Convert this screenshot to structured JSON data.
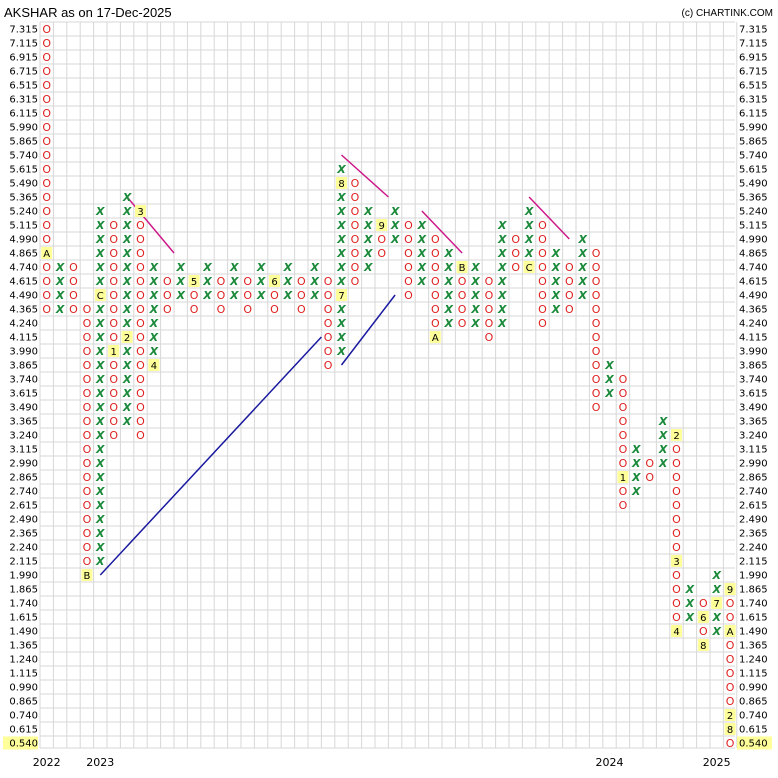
{
  "chart_data": {
    "type": "point-and-figure",
    "title": "AKSHAR as on 17-Dec-2025",
    "credit": "(c) CHARTINK.COM",
    "y_ticks": [
      "7.315",
      "7.115",
      "6.915",
      "6.715",
      "6.515",
      "6.315",
      "6.115",
      "5.990",
      "5.865",
      "5.740",
      "5.615",
      "5.490",
      "5.365",
      "5.240",
      "5.115",
      "4.990",
      "4.865",
      "4.740",
      "4.615",
      "4.490",
      "4.365",
      "4.240",
      "4.115",
      "3.990",
      "3.865",
      "3.740",
      "3.615",
      "3.490",
      "3.365",
      "3.240",
      "3.115",
      "2.990",
      "2.865",
      "2.740",
      "2.615",
      "2.490",
      "2.365",
      "2.240",
      "2.115",
      "1.990",
      "1.865",
      "1.740",
      "1.615",
      "1.490",
      "1.365",
      "1.240",
      "1.115",
      "0.990",
      "0.865",
      "0.740",
      "0.615",
      "0.540"
    ],
    "last_price": "0.540",
    "year_labels": [
      {
        "label": "2022",
        "column": 0
      },
      {
        "label": "2023",
        "column": 4
      },
      {
        "label": "2024",
        "column": 42
      },
      {
        "label": "2025",
        "column": 50
      }
    ],
    "columns": [
      {
        "col": 0,
        "type": "O",
        "from": "7.315",
        "to": "4.365",
        "labels": [
          {
            "at": "4.865",
            "text": "A"
          }
        ]
      },
      {
        "col": 1,
        "type": "X",
        "from": "4.365",
        "to": "4.740"
      },
      {
        "col": 2,
        "type": "O",
        "from": "4.740",
        "to": "4.365"
      },
      {
        "col": 3,
        "type": "O",
        "from": "4.365",
        "to": "2.115",
        "labels": [
          {
            "at": "1.990",
            "text": "B"
          }
        ]
      },
      {
        "col": 4,
        "type": "X",
        "from": "2.115",
        "to": "5.240",
        "labels": [
          {
            "at": "4.490",
            "text": "C"
          }
        ]
      },
      {
        "col": 5,
        "type": "O",
        "from": "5.115",
        "to": "3.240",
        "labels": [
          {
            "at": "3.990",
            "text": "1"
          }
        ]
      },
      {
        "col": 6,
        "type": "X",
        "from": "3.365",
        "to": "5.365",
        "labels": [
          {
            "at": "4.115",
            "text": "2"
          }
        ]
      },
      {
        "col": 7,
        "type": "O",
        "from": "5.115",
        "to": "3.240",
        "labels": [
          {
            "at": "5.240",
            "text": "3"
          }
        ]
      },
      {
        "col": 8,
        "type": "X",
        "from": "3.990",
        "to": "4.740",
        "labels": [
          {
            "at": "3.865",
            "text": "4"
          }
        ]
      },
      {
        "col": 9,
        "type": "O",
        "from": "4.615",
        "to": "4.365"
      },
      {
        "col": 10,
        "type": "X",
        "from": "4.490",
        "to": "4.740"
      },
      {
        "col": 11,
        "type": "O",
        "from": "4.490",
        "to": "4.365",
        "labels": [
          {
            "at": "4.615",
            "text": "5"
          }
        ]
      },
      {
        "col": 12,
        "type": "X",
        "from": "4.490",
        "to": "4.740"
      },
      {
        "col": 13,
        "type": "O",
        "from": "4.615",
        "to": "4.365"
      },
      {
        "col": 14,
        "type": "X",
        "from": "4.490",
        "to": "4.740"
      },
      {
        "col": 15,
        "type": "O",
        "from": "4.615",
        "to": "4.365"
      },
      {
        "col": 16,
        "type": "X",
        "from": "4.490",
        "to": "4.740"
      },
      {
        "col": 17,
        "type": "O",
        "from": "4.490",
        "to": "4.365",
        "labels": [
          {
            "at": "4.615",
            "text": "6"
          }
        ]
      },
      {
        "col": 18,
        "type": "X",
        "from": "4.490",
        "to": "4.740"
      },
      {
        "col": 19,
        "type": "O",
        "from": "4.615",
        "to": "4.365"
      },
      {
        "col": 20,
        "type": "X",
        "from": "4.490",
        "to": "4.740"
      },
      {
        "col": 21,
        "type": "O",
        "from": "4.615",
        "to": "3.865"
      },
      {
        "col": 22,
        "type": "X",
        "from": "3.990",
        "to": "5.615",
        "labels": [
          {
            "at": "4.490",
            "text": "7"
          },
          {
            "at": "5.490",
            "text": "8"
          }
        ]
      },
      {
        "col": 23,
        "type": "O",
        "from": "5.490",
        "to": "4.615"
      },
      {
        "col": 24,
        "type": "X",
        "from": "4.740",
        "to": "5.240"
      },
      {
        "col": 25,
        "type": "O",
        "from": "4.990",
        "to": "4.865",
        "labels": [
          {
            "at": "5.115",
            "text": "9"
          }
        ]
      },
      {
        "col": 26,
        "type": "X",
        "from": "4.990",
        "to": "5.240"
      },
      {
        "col": 27,
        "type": "O",
        "from": "5.115",
        "to": "4.490"
      },
      {
        "col": 28,
        "type": "X",
        "from": "4.615",
        "to": "5.115"
      },
      {
        "col": 29,
        "type": "O",
        "from": "4.990",
        "to": "4.240",
        "labels": [
          {
            "at": "4.115",
            "text": "A"
          }
        ]
      },
      {
        "col": 30,
        "type": "X",
        "from": "4.240",
        "to": "4.865"
      },
      {
        "col": 31,
        "type": "O",
        "from": "4.615",
        "to": "4.240",
        "labels": [
          {
            "at": "4.740",
            "text": "B"
          }
        ]
      },
      {
        "col": 32,
        "type": "X",
        "from": "4.240",
        "to": "4.740"
      },
      {
        "col": 33,
        "type": "O",
        "from": "4.615",
        "to": "4.115"
      },
      {
        "col": 34,
        "type": "X",
        "from": "4.240",
        "to": "5.115"
      },
      {
        "col": 35,
        "type": "O",
        "from": "4.990",
        "to": "4.740"
      },
      {
        "col": 36,
        "type": "X",
        "from": "4.865",
        "to": "5.240",
        "labels": [
          {
            "at": "4.740",
            "text": "C"
          }
        ]
      },
      {
        "col": 37,
        "type": "O",
        "from": "5.115",
        "to": "4.240"
      },
      {
        "col": 38,
        "type": "X",
        "from": "4.365",
        "to": "4.865"
      },
      {
        "col": 39,
        "type": "O",
        "from": "4.740",
        "to": "4.365"
      },
      {
        "col": 40,
        "type": "X",
        "from": "4.490",
        "to": "4.990"
      },
      {
        "col": 41,
        "type": "O",
        "from": "4.865",
        "to": "3.490"
      },
      {
        "col": 42,
        "type": "X",
        "from": "3.615",
        "to": "3.865"
      },
      {
        "col": 43,
        "type": "O",
        "from": "3.740",
        "to": "2.615",
        "labels": [
          {
            "at": "2.865",
            "text": "1"
          }
        ]
      },
      {
        "col": 44,
        "type": "X",
        "from": "2.740",
        "to": "3.115"
      },
      {
        "col": 45,
        "type": "O",
        "from": "2.990",
        "to": "2.865"
      },
      {
        "col": 46,
        "type": "X",
        "from": "2.990",
        "to": "3.365"
      },
      {
        "col": 47,
        "type": "O",
        "from": "3.240",
        "to": "1.490",
        "labels": [
          {
            "at": "3.240",
            "text": "2"
          },
          {
            "at": "2.115",
            "text": "3"
          },
          {
            "at": "1.490",
            "text": "4"
          }
        ]
      },
      {
        "col": 48,
        "type": "X",
        "from": "1.615",
        "to": "1.865"
      },
      {
        "col": 49,
        "type": "O",
        "from": "1.740",
        "to": "1.365",
        "labels": [
          {
            "at": "1.615",
            "text": "6"
          },
          {
            "at": "1.365",
            "text": "8"
          }
        ]
      },
      {
        "col": 50,
        "type": "X",
        "from": "1.490",
        "to": "1.990",
        "labels": [
          {
            "at": "1.740",
            "text": "7"
          }
        ]
      },
      {
        "col": 51,
        "type": "O",
        "from": "1.865",
        "to": "0.540",
        "labels": [
          {
            "at": "1.865",
            "text": "9"
          },
          {
            "at": "1.490",
            "text": "A"
          },
          {
            "at": "0.740",
            "text": "2"
          },
          {
            "at": "0.615",
            "text": "8"
          }
        ]
      }
    ],
    "trendlines": [
      {
        "color": "#cc1a8a",
        "from": {
          "col": 6,
          "y": "5.365"
        },
        "to": {
          "col": 9.5,
          "y": "4.865"
        }
      },
      {
        "color": "#cc1a8a",
        "from": {
          "col": 22,
          "y": "5.740"
        },
        "to": {
          "col": 25.5,
          "y": "5.365"
        }
      },
      {
        "color": "#cc1a8a",
        "from": {
          "col": 28,
          "y": "5.240"
        },
        "to": {
          "col": 31,
          "y": "4.865"
        }
      },
      {
        "color": "#cc1a8a",
        "from": {
          "col": 36,
          "y": "5.365"
        },
        "to": {
          "col": 39,
          "y": "4.990"
        }
      },
      {
        "color": "#1a1aa0",
        "from": {
          "col": 4,
          "y": "1.990"
        },
        "to": {
          "col": 20.5,
          "y": "4.115"
        }
      },
      {
        "color": "#1a1aa0",
        "from": {
          "col": 22,
          "y": "3.865"
        },
        "to": {
          "col": 26,
          "y": "4.490"
        }
      }
    ],
    "colors": {
      "x": "#1a8a3a",
      "o": "#e02020",
      "label_bg": "#ffff99",
      "grid": "#d7d7d7"
    },
    "grid": true
  }
}
